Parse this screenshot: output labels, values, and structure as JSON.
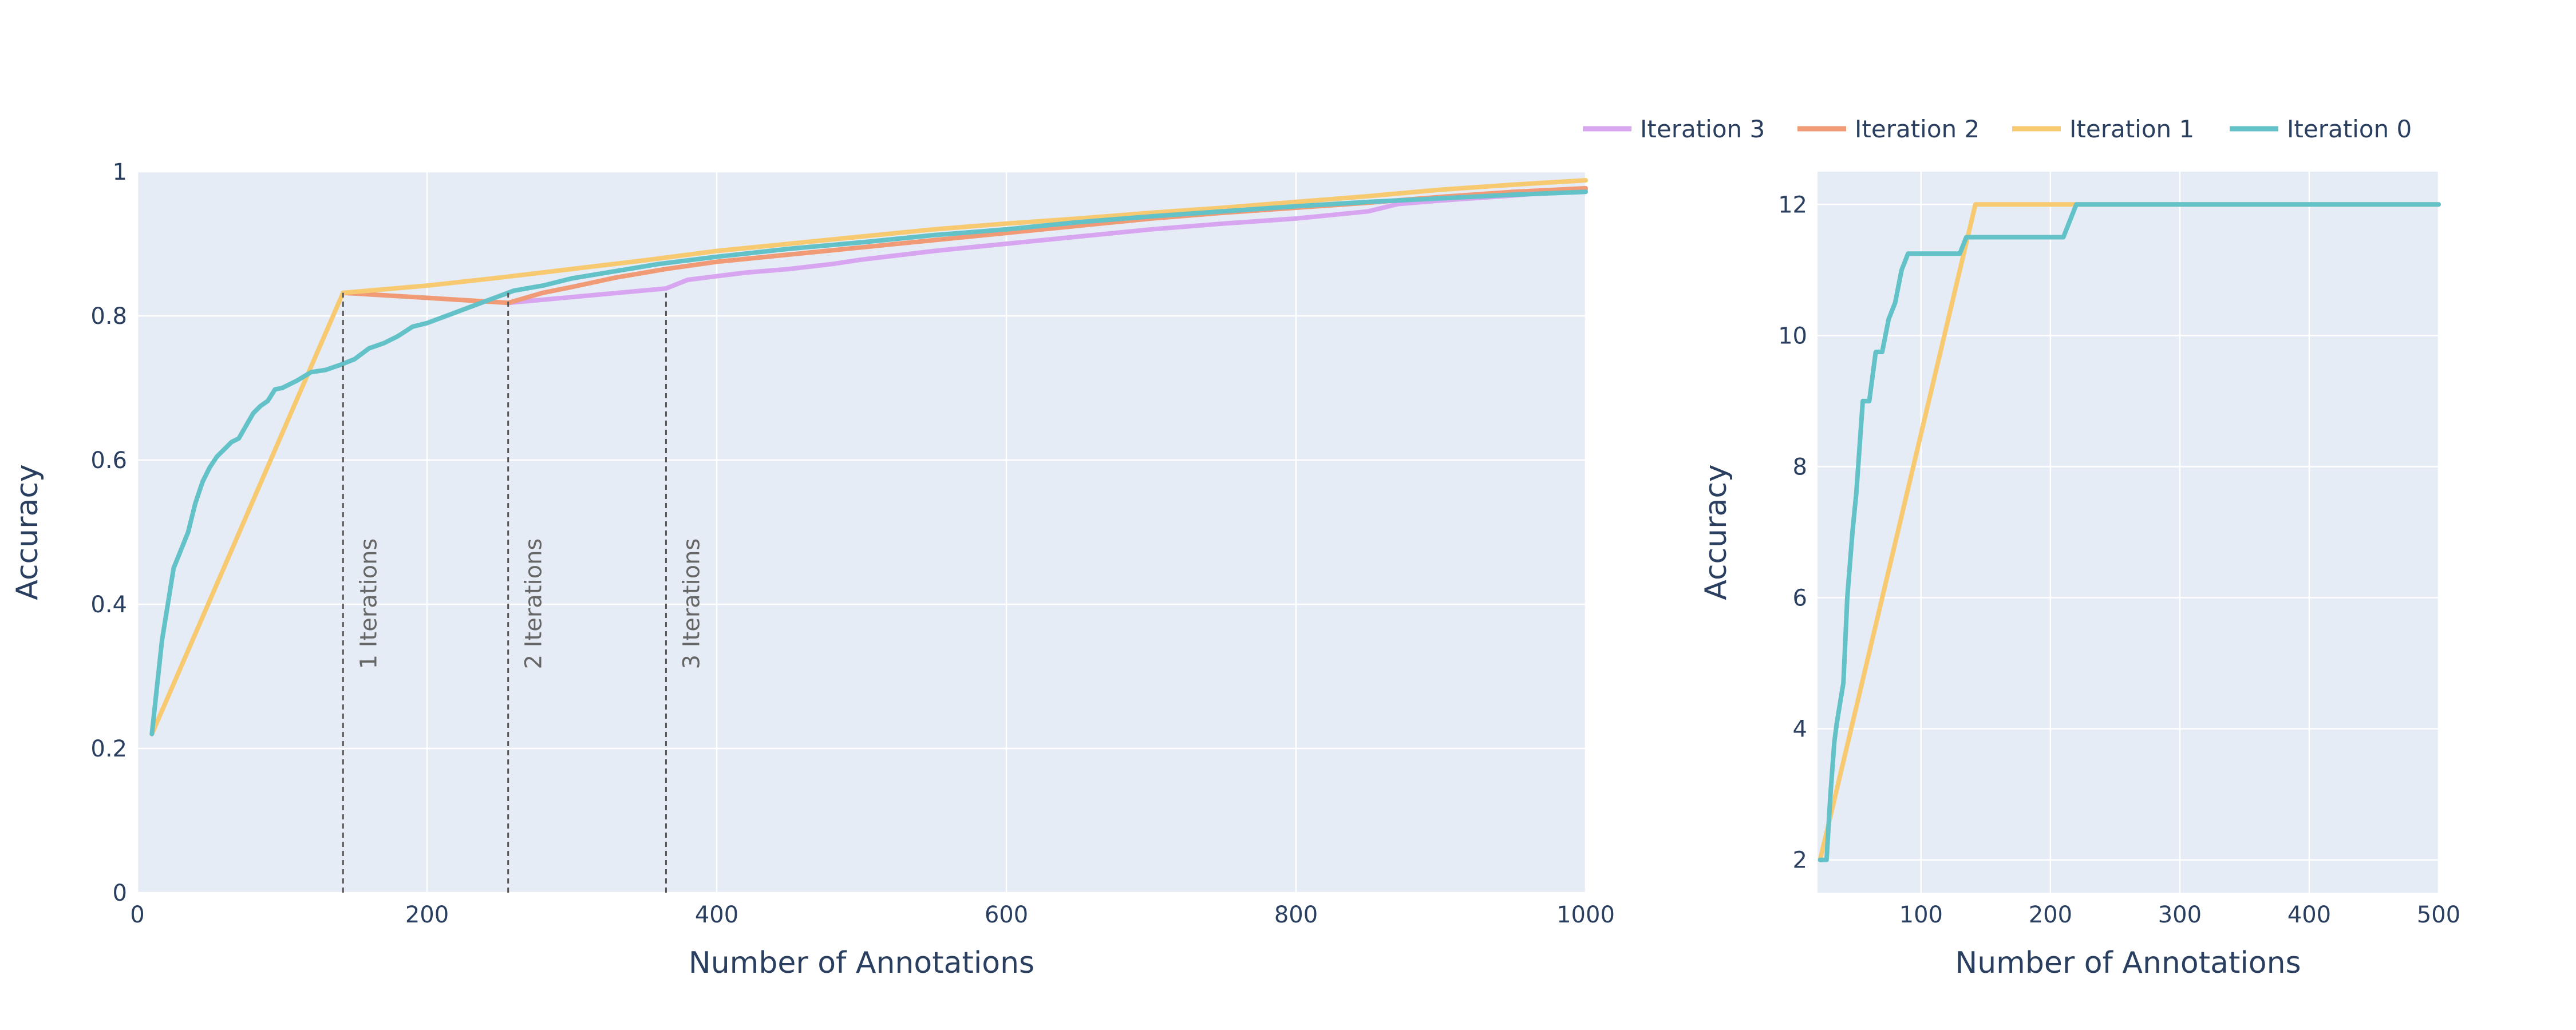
{
  "colors": {
    "iteration_3": "#d8a6f0",
    "iteration_2": "#f19a76",
    "iteration_1": "#f7ca72",
    "iteration_0": "#62c2c8",
    "plot_bg": "#e5ecf6",
    "grid": "#ffffff",
    "text": "#2a3f5f",
    "annotation": "#666666"
  },
  "legend": {
    "placement": "top-right",
    "items": [
      {
        "name": "Iteration 3",
        "color": "#d8a6f0"
      },
      {
        "name": "Iteration 2",
        "color": "#f19a76"
      },
      {
        "name": "Iteration 1",
        "color": "#f7ca72"
      },
      {
        "name": "Iteration 0",
        "color": "#62c2c8"
      }
    ]
  },
  "chart_data": [
    {
      "type": "line",
      "xlabel": "Number of Annotations",
      "ylabel": "Accuracy",
      "xlim": [
        0,
        1000
      ],
      "ylim": [
        0,
        1
      ],
      "xticks": [
        0,
        200,
        400,
        600,
        800,
        1000
      ],
      "yticks": [
        0,
        0.2,
        0.4,
        0.6,
        0.8,
        1
      ],
      "ytick_labels": [
        "0",
        "0.2",
        "0.4",
        "0.6",
        "0.8",
        "1"
      ],
      "grid": true,
      "annotations": [
        {
          "x": 142,
          "text": "1 Iterations"
        },
        {
          "x": 256,
          "text": "2 Iterations"
        },
        {
          "x": 365,
          "text": "3 Iterations"
        }
      ],
      "series": [
        {
          "name": "Iteration 3",
          "color": "#d8a6f0",
          "x": [
            256,
            300,
            365,
            380,
            400,
            420,
            450,
            480,
            500,
            550,
            600,
            650,
            700,
            750,
            800,
            850,
            870,
            900,
            950,
            1000
          ],
          "y": [
            0.818,
            0.826,
            0.838,
            0.85,
            0.855,
            0.86,
            0.865,
            0.872,
            0.878,
            0.89,
            0.9,
            0.91,
            0.92,
            0.928,
            0.935,
            0.945,
            0.955,
            0.96,
            0.967,
            0.975
          ]
        },
        {
          "name": "Iteration 2",
          "color": "#f19a76",
          "x": [
            142,
            200,
            256,
            280,
            300,
            330,
            365,
            400,
            450,
            500,
            550,
            600,
            650,
            700,
            750,
            800,
            850,
            900,
            950,
            1000
          ],
          "y": [
            0.832,
            0.825,
            0.818,
            0.832,
            0.84,
            0.853,
            0.865,
            0.875,
            0.885,
            0.895,
            0.905,
            0.915,
            0.925,
            0.935,
            0.943,
            0.95,
            0.957,
            0.965,
            0.972,
            0.977
          ]
        },
        {
          "name": "Iteration 1",
          "color": "#f7ca72",
          "x": [
            10,
            142,
            160,
            200,
            250,
            300,
            350,
            400,
            450,
            500,
            550,
            600,
            650,
            700,
            750,
            800,
            850,
            900,
            950,
            1000
          ],
          "y": [
            0.22,
            0.832,
            0.835,
            0.842,
            0.853,
            0.865,
            0.877,
            0.89,
            0.9,
            0.91,
            0.92,
            0.928,
            0.935,
            0.943,
            0.95,
            0.958,
            0.966,
            0.975,
            0.982,
            0.988
          ]
        },
        {
          "name": "Iteration 0",
          "color": "#62c2c8",
          "x": [
            10,
            17,
            25,
            35,
            40,
            45,
            50,
            55,
            60,
            65,
            70,
            80,
            85,
            90,
            95,
            100,
            110,
            120,
            130,
            140,
            150,
            160,
            170,
            180,
            190,
            200,
            220,
            240,
            260,
            280,
            300,
            330,
            360,
            400,
            450,
            500,
            550,
            600,
            650,
            700,
            750,
            800,
            850,
            900,
            950,
            1000
          ],
          "y": [
            0.22,
            0.35,
            0.45,
            0.5,
            0.54,
            0.57,
            0.59,
            0.605,
            0.615,
            0.625,
            0.63,
            0.665,
            0.675,
            0.682,
            0.698,
            0.7,
            0.71,
            0.722,
            0.725,
            0.732,
            0.74,
            0.755,
            0.762,
            0.772,
            0.785,
            0.79,
            0.805,
            0.82,
            0.835,
            0.842,
            0.852,
            0.862,
            0.872,
            0.882,
            0.893,
            0.902,
            0.912,
            0.92,
            0.93,
            0.938,
            0.945,
            0.952,
            0.958,
            0.963,
            0.968,
            0.972
          ]
        }
      ]
    },
    {
      "type": "line",
      "xlabel": "Number of Annotations",
      "ylabel": "Accuracy",
      "xlim": [
        20,
        500
      ],
      "ylim": [
        1.5,
        12.5
      ],
      "xticks": [
        100,
        200,
        300,
        400,
        500
      ],
      "yticks": [
        2,
        4,
        6,
        8,
        10,
        12
      ],
      "ytick_labels": [
        "2",
        "4",
        "6",
        "8",
        "10",
        "12"
      ],
      "grid": true,
      "series": [
        {
          "name": "Iteration 1",
          "color": "#f7ca72",
          "x": [
            22,
            142,
            220,
            500
          ],
          "y": [
            2,
            12,
            12,
            12
          ]
        },
        {
          "name": "Iteration 0",
          "color": "#62c2c8",
          "x": [
            22,
            27,
            30,
            33,
            35,
            40,
            43,
            47,
            50,
            55,
            60,
            65,
            70,
            75,
            80,
            85,
            90,
            95,
            100,
            110,
            120,
            130,
            135,
            140,
            145,
            160,
            180,
            200,
            210,
            215,
            220,
            500
          ],
          "y": [
            2,
            2,
            3,
            3.8,
            4.1,
            4.7,
            6,
            7,
            7.6,
            9,
            9,
            9.75,
            9.75,
            10.25,
            10.5,
            11,
            11.25,
            11.25,
            11.25,
            11.25,
            11.25,
            11.25,
            11.5,
            11.5,
            11.5,
            11.5,
            11.5,
            11.5,
            11.5,
            11.75,
            12,
            12
          ]
        }
      ]
    }
  ]
}
